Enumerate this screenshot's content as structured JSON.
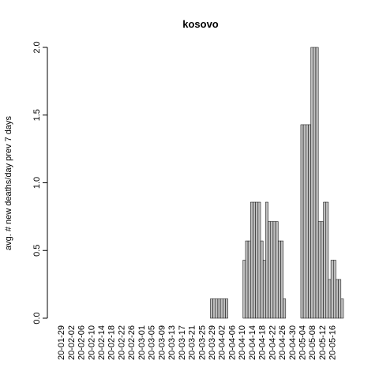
{
  "chart_data": {
    "type": "bar",
    "title": "kosovo",
    "ylabel": "avg. # new deaths/day prev  7  days",
    "xlabel": "",
    "ylim": [
      0,
      2.0
    ],
    "yticks": [
      "0.0",
      "0.5",
      "1.0",
      "1.5",
      "2.0"
    ],
    "xtick_labels": [
      "20-01-29",
      "20-02-02",
      "20-02-06",
      "20-02-10",
      "20-02-14",
      "20-02-18",
      "20-02-22",
      "20-02-26",
      "20-03-01",
      "20-03-05",
      "20-03-09",
      "20-03-13",
      "20-03-17",
      "20-03-21",
      "20-03-25",
      "20-03-29",
      "20-04-02",
      "20-04-06",
      "20-04-10",
      "20-04-14",
      "20-04-18",
      "20-04-22",
      "20-04-26",
      "20-04-30",
      "20-05-04",
      "20-05-08",
      "20-05-12",
      "20-05-16"
    ],
    "start_date": "2020-01-29",
    "values": [
      0,
      0,
      0,
      0,
      0,
      0,
      0,
      0,
      0,
      0,
      0,
      0,
      0,
      0,
      0,
      0,
      0,
      0,
      0,
      0,
      0,
      0,
      0,
      0,
      0,
      0,
      0,
      0,
      0,
      0,
      0,
      0,
      0,
      0,
      0,
      0,
      0,
      0,
      0,
      0,
      0,
      0,
      0,
      0,
      0,
      0,
      0,
      0,
      0,
      0,
      0,
      0,
      0,
      0,
      0,
      0,
      0,
      0,
      0,
      0,
      0.143,
      0.143,
      0.143,
      0.143,
      0.143,
      0.143,
      0.143,
      0,
      0,
      0,
      0,
      0,
      0,
      0.429,
      0.571,
      0.571,
      0.857,
      0.857,
      0.857,
      0.857,
      0.571,
      0.429,
      0.857,
      0.714,
      0.714,
      0.714,
      0.714,
      0.571,
      0.571,
      0.143,
      0,
      0,
      0,
      0,
      0,
      0,
      1.429,
      1.429,
      1.429,
      1.429,
      2.0,
      2.0,
      2.0,
      0.714,
      0.714,
      0.857,
      0.857,
      0.286,
      0.429,
      0.429,
      0.286,
      0.286,
      0.143
    ]
  }
}
